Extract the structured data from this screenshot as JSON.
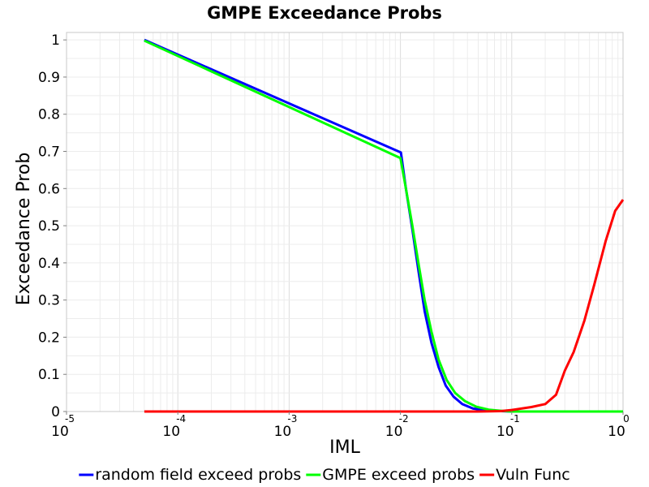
{
  "chart_data": {
    "type": "line",
    "title": "GMPE Exceedance Probs",
    "xlabel": "IML",
    "ylabel": "Exceedance Prob",
    "x_scale": "log",
    "xlim": [
      1e-05,
      1
    ],
    "ylim": [
      0,
      1.02
    ],
    "grid": true,
    "legend_position": "bottom",
    "x_ticks": [
      {
        "value": 1e-05,
        "base": "10",
        "exp": "-5"
      },
      {
        "value": 0.0001,
        "base": "10",
        "exp": "-4"
      },
      {
        "value": 0.001,
        "base": "10",
        "exp": "-3"
      },
      {
        "value": 0.01,
        "base": "10",
        "exp": "-2"
      },
      {
        "value": 0.1,
        "base": "10",
        "exp": "-1"
      },
      {
        "value": 1,
        "base": "10",
        "exp": "0"
      }
    ],
    "y_ticks": [
      {
        "value": 0,
        "label": "0"
      },
      {
        "value": 0.1,
        "label": "0.1"
      },
      {
        "value": 0.2,
        "label": "0.2"
      },
      {
        "value": 0.3,
        "label": "0.3"
      },
      {
        "value": 0.4,
        "label": "0.4"
      },
      {
        "value": 0.5,
        "label": "0.5"
      },
      {
        "value": 0.6,
        "label": "0.6"
      },
      {
        "value": 0.7,
        "label": "0.7"
      },
      {
        "value": 0.8,
        "label": "0.8"
      },
      {
        "value": 0.9,
        "label": "0.9"
      },
      {
        "value": 1,
        "label": "1"
      }
    ],
    "series": [
      {
        "name": "random field exceed probs",
        "color": "#0000ff",
        "points": [
          [
            5e-05,
            1.0
          ],
          [
            0.0101,
            0.697
          ],
          [
            0.0112,
            0.6
          ],
          [
            0.0128,
            0.49
          ],
          [
            0.0145,
            0.38
          ],
          [
            0.0165,
            0.27
          ],
          [
            0.019,
            0.185
          ],
          [
            0.022,
            0.12
          ],
          [
            0.0255,
            0.07
          ],
          [
            0.03,
            0.04
          ],
          [
            0.036,
            0.02
          ],
          [
            0.045,
            0.008
          ],
          [
            0.06,
            0.003
          ],
          [
            0.08,
            0.001
          ],
          [
            0.1,
            0.0
          ],
          [
            1.0,
            0.0
          ]
        ]
      },
      {
        "name": "GMPE exceed probs",
        "color": "#00ff00",
        "points": [
          [
            5e-05,
            0.998
          ],
          [
            0.01,
            0.682
          ],
          [
            0.0112,
            0.6
          ],
          [
            0.0128,
            0.5
          ],
          [
            0.0145,
            0.4
          ],
          [
            0.0165,
            0.3
          ],
          [
            0.019,
            0.215
          ],
          [
            0.022,
            0.14
          ],
          [
            0.026,
            0.085
          ],
          [
            0.031,
            0.05
          ],
          [
            0.038,
            0.028
          ],
          [
            0.048,
            0.013
          ],
          [
            0.062,
            0.005
          ],
          [
            0.08,
            0.002
          ],
          [
            0.1,
            0.0
          ],
          [
            1.0,
            0.0
          ]
        ]
      },
      {
        "name": "Vuln Func",
        "color": "#ff0000",
        "points": [
          [
            5e-05,
            0.0
          ],
          [
            0.05,
            0.0
          ],
          [
            0.08,
            0.001
          ],
          [
            0.1,
            0.004
          ],
          [
            0.15,
            0.012
          ],
          [
            0.2,
            0.02
          ],
          [
            0.25,
            0.045
          ],
          [
            0.3,
            0.11
          ],
          [
            0.36,
            0.16
          ],
          [
            0.45,
            0.245
          ],
          [
            0.55,
            0.34
          ],
          [
            0.7,
            0.46
          ],
          [
            0.85,
            0.54
          ],
          [
            1.0,
            0.57
          ]
        ]
      }
    ]
  }
}
